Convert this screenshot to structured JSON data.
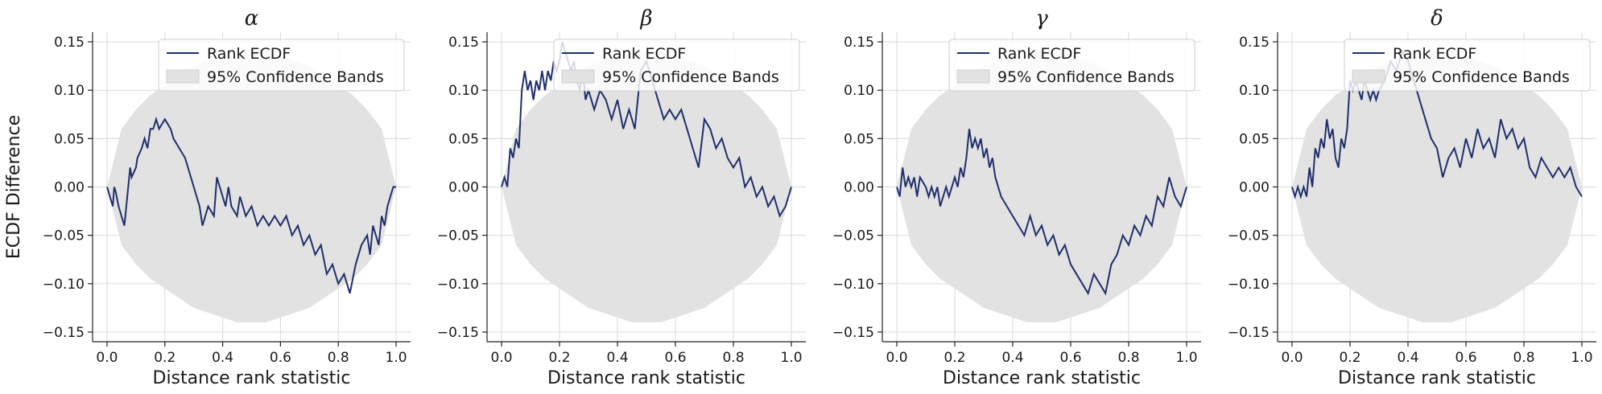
{
  "chart_data": [
    {
      "type": "line",
      "title": "α",
      "xlabel": "Distance rank statistic",
      "ylabel": "ECDF Difference",
      "xlim": [
        -0.05,
        1.05
      ],
      "ylim": [
        -0.16,
        0.16
      ],
      "xticks": [
        0.0,
        0.2,
        0.4,
        0.6,
        0.8,
        1.0
      ],
      "xtick_labels": [
        "0.0",
        "0.2",
        "0.4",
        "0.6",
        "0.8",
        "1.0"
      ],
      "yticks": [
        -0.15,
        -0.1,
        -0.05,
        0.0,
        0.05,
        0.1,
        0.15
      ],
      "ytick_labels": [
        "−0.15",
        "−0.10",
        "−0.05",
        "0.00",
        "0.05",
        "0.10",
        "0.15"
      ],
      "grid": true,
      "legend_position": "top-right",
      "legend": [
        "Rank ECDF",
        "95% Confidence Bands"
      ],
      "series": [
        {
          "name": "Rank ECDF",
          "color": "#1f2f6b",
          "x": [
            0.0,
            0.02,
            0.025,
            0.03,
            0.04,
            0.06,
            0.08,
            0.085,
            0.1,
            0.105,
            0.12,
            0.13,
            0.14,
            0.15,
            0.16,
            0.17,
            0.18,
            0.2,
            0.22,
            0.23,
            0.25,
            0.27,
            0.28,
            0.3,
            0.32,
            0.33,
            0.35,
            0.37,
            0.38,
            0.4,
            0.41,
            0.42,
            0.43,
            0.45,
            0.46,
            0.48,
            0.5,
            0.52,
            0.54,
            0.56,
            0.58,
            0.6,
            0.62,
            0.64,
            0.66,
            0.68,
            0.7,
            0.72,
            0.74,
            0.76,
            0.78,
            0.8,
            0.82,
            0.84,
            0.86,
            0.88,
            0.9,
            0.91,
            0.92,
            0.94,
            0.95,
            0.96,
            0.97,
            0.98,
            0.99,
            1.0
          ],
          "y": [
            0.0,
            -0.02,
            0.0,
            -0.005,
            -0.02,
            -0.04,
            0.02,
            0.01,
            0.02,
            0.03,
            0.04,
            0.05,
            0.04,
            0.06,
            0.06,
            0.07,
            0.06,
            0.07,
            0.06,
            0.05,
            0.04,
            0.03,
            0.02,
            0.0,
            -0.02,
            -0.04,
            -0.02,
            -0.03,
            0.01,
            -0.01,
            -0.02,
            0.0,
            -0.02,
            -0.03,
            -0.01,
            -0.03,
            -0.02,
            -0.04,
            -0.03,
            -0.04,
            -0.03,
            -0.04,
            -0.03,
            -0.05,
            -0.04,
            -0.06,
            -0.05,
            -0.07,
            -0.06,
            -0.09,
            -0.08,
            -0.1,
            -0.09,
            -0.11,
            -0.08,
            -0.06,
            -0.05,
            -0.07,
            -0.04,
            -0.06,
            -0.03,
            -0.04,
            -0.02,
            -0.01,
            0.0,
            0.0
          ]
        },
        {
          "name": "95% Confidence Bands",
          "color": "#e2e2e2",
          "x": [
            0.0,
            0.05,
            0.1,
            0.15,
            0.2,
            0.25,
            0.3,
            0.35,
            0.4,
            0.45,
            0.5,
            0.55,
            0.6,
            0.65,
            0.7,
            0.75,
            0.8,
            0.85,
            0.9,
            0.95,
            1.0
          ],
          "upper": [
            0.0,
            0.06,
            0.08,
            0.095,
            0.105,
            0.115,
            0.125,
            0.13,
            0.135,
            0.14,
            0.14,
            0.14,
            0.135,
            0.13,
            0.125,
            0.115,
            0.105,
            0.095,
            0.08,
            0.06,
            0.0
          ],
          "lower": [
            0.0,
            -0.06,
            -0.08,
            -0.095,
            -0.105,
            -0.115,
            -0.125,
            -0.13,
            -0.135,
            -0.14,
            -0.14,
            -0.14,
            -0.135,
            -0.13,
            -0.125,
            -0.115,
            -0.105,
            -0.095,
            -0.08,
            -0.06,
            0.0
          ]
        }
      ]
    },
    {
      "type": "line",
      "title": "β",
      "xlabel": "Distance rank statistic",
      "ylabel": "",
      "xlim": [
        -0.05,
        1.05
      ],
      "ylim": [
        -0.16,
        0.16
      ],
      "xticks": [
        0.0,
        0.2,
        0.4,
        0.6,
        0.8,
        1.0
      ],
      "xtick_labels": [
        "0.0",
        "0.2",
        "0.4",
        "0.6",
        "0.8",
        "1.0"
      ],
      "yticks": [
        -0.15,
        -0.1,
        -0.05,
        0.0,
        0.05,
        0.1,
        0.15
      ],
      "ytick_labels": [
        "−0.15",
        "−0.10",
        "−0.05",
        "0.00",
        "0.05",
        "0.10",
        "0.15"
      ],
      "grid": true,
      "legend_position": "top-right",
      "legend": [
        "Rank ECDF",
        "95% Confidence Bands"
      ],
      "series": [
        {
          "name": "Rank ECDF",
          "color": "#1f2f6b",
          "x": [
            0.0,
            0.01,
            0.02,
            0.03,
            0.04,
            0.05,
            0.06,
            0.07,
            0.08,
            0.09,
            0.1,
            0.11,
            0.12,
            0.13,
            0.14,
            0.15,
            0.16,
            0.17,
            0.18,
            0.19,
            0.2,
            0.21,
            0.22,
            0.24,
            0.25,
            0.26,
            0.27,
            0.28,
            0.29,
            0.3,
            0.32,
            0.34,
            0.36,
            0.38,
            0.4,
            0.42,
            0.44,
            0.46,
            0.48,
            0.5,
            0.52,
            0.54,
            0.56,
            0.58,
            0.6,
            0.62,
            0.64,
            0.66,
            0.68,
            0.7,
            0.72,
            0.74,
            0.76,
            0.78,
            0.8,
            0.82,
            0.84,
            0.86,
            0.88,
            0.9,
            0.92,
            0.94,
            0.96,
            0.98,
            1.0
          ],
          "y": [
            0.0,
            0.01,
            0.0,
            0.04,
            0.03,
            0.05,
            0.04,
            0.1,
            0.12,
            0.1,
            0.11,
            0.09,
            0.11,
            0.1,
            0.12,
            0.1,
            0.12,
            0.11,
            0.13,
            0.12,
            0.13,
            0.15,
            0.14,
            0.12,
            0.13,
            0.11,
            0.1,
            0.12,
            0.09,
            0.1,
            0.08,
            0.1,
            0.09,
            0.07,
            0.09,
            0.06,
            0.08,
            0.06,
            0.12,
            0.13,
            0.11,
            0.09,
            0.07,
            0.08,
            0.07,
            0.08,
            0.06,
            0.04,
            0.02,
            0.07,
            0.06,
            0.04,
            0.05,
            0.03,
            0.02,
            0.03,
            0.0,
            0.01,
            -0.01,
            0.0,
            -0.02,
            -0.01,
            -0.03,
            -0.02,
            0.0
          ]
        },
        {
          "name": "95% Confidence Bands",
          "color": "#e2e2e2",
          "x": [
            0.0,
            0.05,
            0.1,
            0.15,
            0.2,
            0.25,
            0.3,
            0.35,
            0.4,
            0.45,
            0.5,
            0.55,
            0.6,
            0.65,
            0.7,
            0.75,
            0.8,
            0.85,
            0.9,
            0.95,
            1.0
          ],
          "upper": [
            0.0,
            0.06,
            0.08,
            0.095,
            0.105,
            0.115,
            0.125,
            0.13,
            0.135,
            0.14,
            0.14,
            0.14,
            0.135,
            0.13,
            0.125,
            0.115,
            0.105,
            0.095,
            0.08,
            0.06,
            0.0
          ],
          "lower": [
            0.0,
            -0.06,
            -0.08,
            -0.095,
            -0.105,
            -0.115,
            -0.125,
            -0.13,
            -0.135,
            -0.14,
            -0.14,
            -0.14,
            -0.135,
            -0.13,
            -0.125,
            -0.115,
            -0.105,
            -0.095,
            -0.08,
            -0.06,
            0.0
          ]
        }
      ]
    },
    {
      "type": "line",
      "title": "γ",
      "xlabel": "Distance rank statistic",
      "ylabel": "",
      "xlim": [
        -0.05,
        1.05
      ],
      "ylim": [
        -0.16,
        0.16
      ],
      "xticks": [
        0.0,
        0.2,
        0.4,
        0.6,
        0.8,
        1.0
      ],
      "xtick_labels": [
        "0.0",
        "0.2",
        "0.4",
        "0.6",
        "0.8",
        "1.0"
      ],
      "yticks": [
        -0.15,
        -0.1,
        -0.05,
        0.0,
        0.05,
        0.1,
        0.15
      ],
      "ytick_labels": [
        "−0.15",
        "−0.10",
        "−0.05",
        "0.00",
        "0.05",
        "0.10",
        "0.15"
      ],
      "grid": true,
      "legend_position": "top-right",
      "legend": [
        "Rank ECDF",
        "95% Confidence Bands"
      ],
      "series": [
        {
          "name": "Rank ECDF",
          "color": "#1f2f6b",
          "x": [
            0.0,
            0.01,
            0.02,
            0.03,
            0.04,
            0.05,
            0.06,
            0.07,
            0.08,
            0.1,
            0.11,
            0.12,
            0.13,
            0.14,
            0.15,
            0.16,
            0.17,
            0.18,
            0.2,
            0.21,
            0.22,
            0.23,
            0.24,
            0.25,
            0.26,
            0.27,
            0.28,
            0.29,
            0.3,
            0.31,
            0.32,
            0.33,
            0.34,
            0.36,
            0.38,
            0.4,
            0.42,
            0.44,
            0.46,
            0.48,
            0.5,
            0.52,
            0.54,
            0.56,
            0.58,
            0.6,
            0.62,
            0.64,
            0.66,
            0.68,
            0.7,
            0.72,
            0.74,
            0.76,
            0.78,
            0.8,
            0.82,
            0.84,
            0.86,
            0.88,
            0.9,
            0.92,
            0.94,
            0.96,
            0.98,
            1.0
          ],
          "y": [
            0.0,
            -0.01,
            0.02,
            0.0,
            0.01,
            0.0,
            0.01,
            -0.01,
            0.01,
            0.0,
            -0.01,
            0.0,
            -0.01,
            0.0,
            -0.02,
            -0.01,
            0.0,
            -0.01,
            0.01,
            0.0,
            0.02,
            0.01,
            0.03,
            0.06,
            0.04,
            0.05,
            0.04,
            0.05,
            0.03,
            0.04,
            0.02,
            0.03,
            0.01,
            -0.01,
            -0.02,
            -0.03,
            -0.04,
            -0.05,
            -0.03,
            -0.05,
            -0.04,
            -0.06,
            -0.05,
            -0.07,
            -0.06,
            -0.08,
            -0.09,
            -0.1,
            -0.11,
            -0.09,
            -0.1,
            -0.11,
            -0.08,
            -0.07,
            -0.05,
            -0.06,
            -0.04,
            -0.05,
            -0.03,
            -0.04,
            -0.01,
            -0.02,
            0.01,
            -0.01,
            -0.02,
            0.0
          ]
        },
        {
          "name": "95% Confidence Bands",
          "color": "#e2e2e2",
          "x": [
            0.0,
            0.05,
            0.1,
            0.15,
            0.2,
            0.25,
            0.3,
            0.35,
            0.4,
            0.45,
            0.5,
            0.55,
            0.6,
            0.65,
            0.7,
            0.75,
            0.8,
            0.85,
            0.9,
            0.95,
            1.0
          ],
          "upper": [
            0.0,
            0.06,
            0.08,
            0.095,
            0.105,
            0.115,
            0.125,
            0.13,
            0.135,
            0.14,
            0.14,
            0.14,
            0.135,
            0.13,
            0.125,
            0.115,
            0.105,
            0.095,
            0.08,
            0.06,
            0.0
          ],
          "lower": [
            0.0,
            -0.06,
            -0.08,
            -0.095,
            -0.105,
            -0.115,
            -0.125,
            -0.13,
            -0.135,
            -0.14,
            -0.14,
            -0.14,
            -0.135,
            -0.13,
            -0.125,
            -0.115,
            -0.105,
            -0.095,
            -0.08,
            -0.06,
            0.0
          ]
        }
      ]
    },
    {
      "type": "line",
      "title": "δ",
      "xlabel": "Distance rank statistic",
      "ylabel": "",
      "xlim": [
        -0.05,
        1.05
      ],
      "ylim": [
        -0.16,
        0.16
      ],
      "xticks": [
        0.0,
        0.2,
        0.4,
        0.6,
        0.8,
        1.0
      ],
      "xtick_labels": [
        "0.0",
        "0.2",
        "0.4",
        "0.6",
        "0.8",
        "1.0"
      ],
      "yticks": [
        -0.15,
        -0.1,
        -0.05,
        0.0,
        0.05,
        0.1,
        0.15
      ],
      "ytick_labels": [
        "−0.15",
        "−0.10",
        "−0.05",
        "0.00",
        "0.05",
        "0.10",
        "0.15"
      ],
      "grid": true,
      "legend_position": "top-right",
      "legend": [
        "Rank ECDF",
        "95% Confidence Bands"
      ],
      "series": [
        {
          "name": "Rank ECDF",
          "color": "#1f2f6b",
          "x": [
            0.0,
            0.01,
            0.02,
            0.03,
            0.04,
            0.05,
            0.06,
            0.07,
            0.08,
            0.09,
            0.1,
            0.11,
            0.12,
            0.13,
            0.14,
            0.15,
            0.16,
            0.17,
            0.18,
            0.19,
            0.2,
            0.21,
            0.22,
            0.23,
            0.24,
            0.25,
            0.26,
            0.27,
            0.28,
            0.29,
            0.3,
            0.32,
            0.34,
            0.36,
            0.38,
            0.4,
            0.42,
            0.44,
            0.46,
            0.48,
            0.5,
            0.52,
            0.54,
            0.56,
            0.58,
            0.6,
            0.62,
            0.64,
            0.66,
            0.68,
            0.7,
            0.72,
            0.74,
            0.76,
            0.78,
            0.8,
            0.82,
            0.84,
            0.86,
            0.88,
            0.9,
            0.92,
            0.94,
            0.96,
            0.98,
            1.0
          ],
          "y": [
            0.0,
            -0.01,
            0.0,
            -0.01,
            0.0,
            -0.01,
            0.02,
            0.0,
            0.04,
            0.03,
            0.05,
            0.04,
            0.07,
            0.05,
            0.06,
            0.03,
            0.02,
            0.05,
            0.04,
            0.06,
            0.11,
            0.1,
            0.11,
            0.1,
            0.09,
            0.11,
            0.1,
            0.09,
            0.1,
            0.09,
            0.1,
            0.11,
            0.13,
            0.12,
            0.14,
            0.13,
            0.11,
            0.09,
            0.07,
            0.05,
            0.04,
            0.01,
            0.03,
            0.04,
            0.02,
            0.05,
            0.03,
            0.06,
            0.04,
            0.05,
            0.03,
            0.07,
            0.05,
            0.06,
            0.04,
            0.05,
            0.02,
            0.01,
            0.03,
            0.02,
            0.01,
            0.02,
            0.01,
            0.02,
            0.0,
            -0.01
          ]
        },
        {
          "name": "95% Confidence Bands",
          "color": "#e2e2e2",
          "x": [
            0.0,
            0.05,
            0.1,
            0.15,
            0.2,
            0.25,
            0.3,
            0.35,
            0.4,
            0.45,
            0.5,
            0.55,
            0.6,
            0.65,
            0.7,
            0.75,
            0.8,
            0.85,
            0.9,
            0.95,
            1.0
          ],
          "upper": [
            0.0,
            0.06,
            0.08,
            0.095,
            0.105,
            0.115,
            0.125,
            0.13,
            0.135,
            0.14,
            0.14,
            0.14,
            0.135,
            0.13,
            0.125,
            0.115,
            0.105,
            0.095,
            0.08,
            0.06,
            0.0
          ],
          "lower": [
            0.0,
            -0.06,
            -0.08,
            -0.095,
            -0.105,
            -0.115,
            -0.125,
            -0.13,
            -0.135,
            -0.14,
            -0.14,
            -0.14,
            -0.135,
            -0.13,
            -0.125,
            -0.115,
            -0.105,
            -0.095,
            -0.08,
            -0.06,
            0.0
          ]
        }
      ]
    }
  ]
}
